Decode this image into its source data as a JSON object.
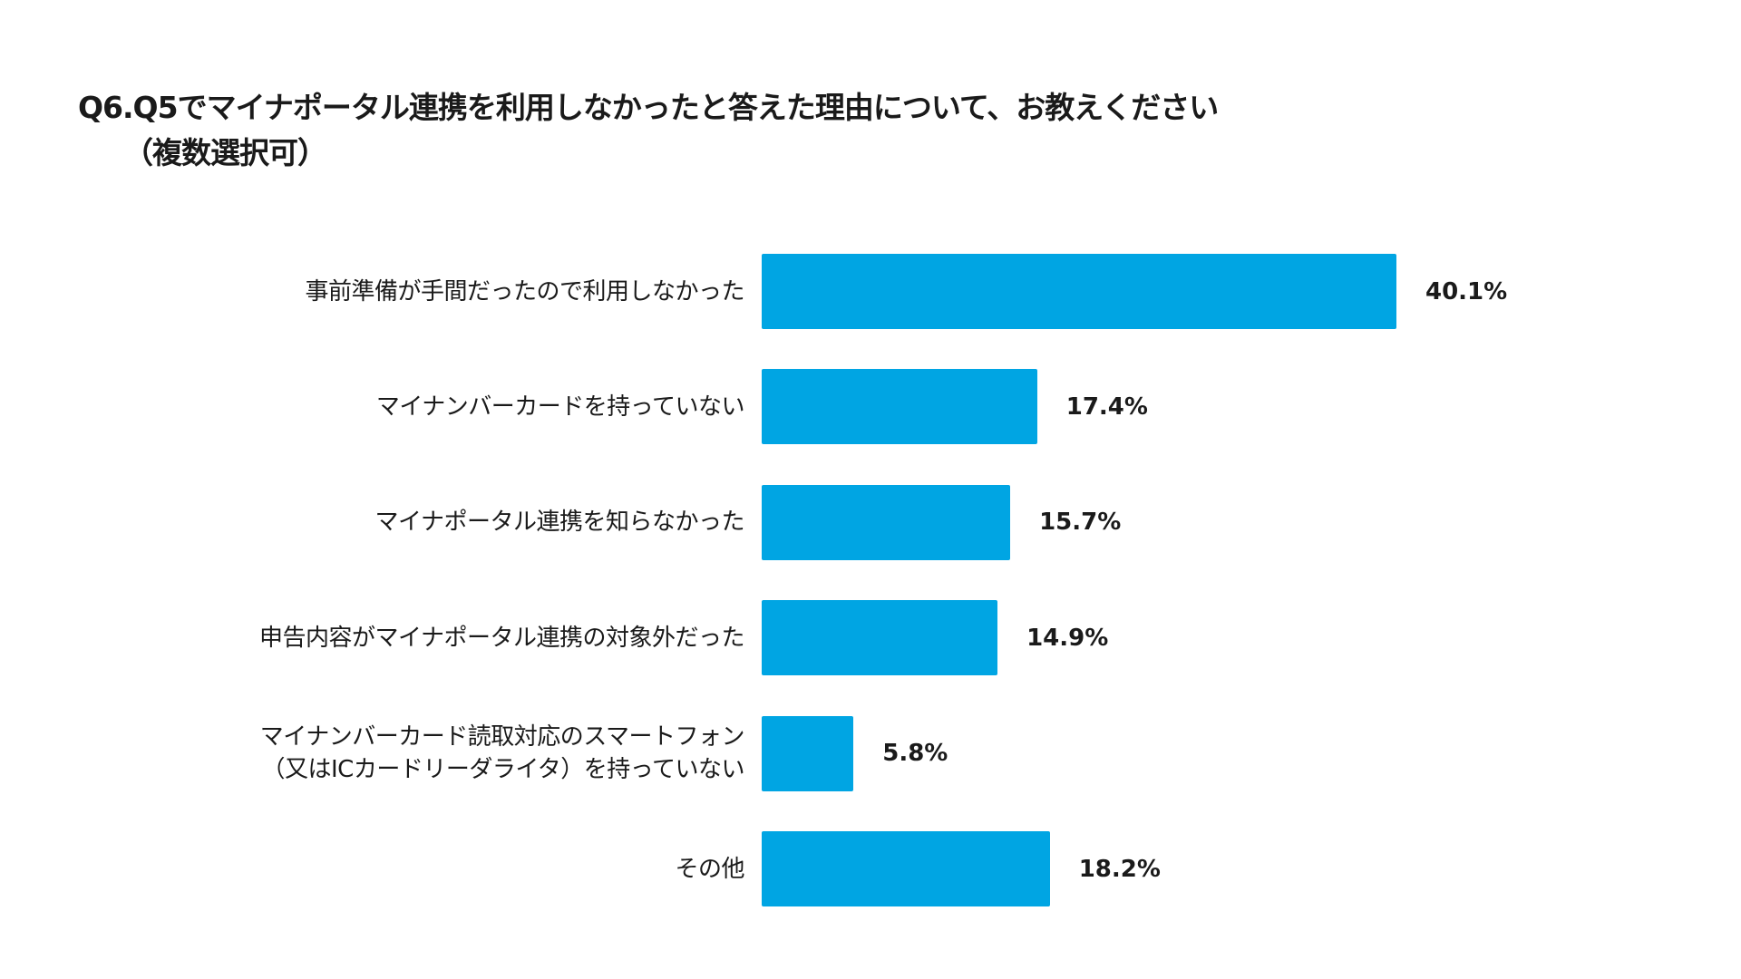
{
  "chart_data": {
    "type": "bar",
    "orientation": "horizontal",
    "title": "Q6.Q5でマイナポータル連携を利用しなかったと答えた理由について、お教えください",
    "subtitle": "（複数選択可）",
    "categories": [
      [
        "事前準備が手間だったので利用しなかった"
      ],
      [
        "マイナンバーカードを持っていない"
      ],
      [
        "マイナポータル連携を知らなかった"
      ],
      [
        "申告内容がマイナポータル連携の対象外だった"
      ],
      [
        "マイナンバーカード読取対応のスマートフォン",
        "（又はICカードリーダライタ）を持っていない"
      ],
      [
        "その他"
      ]
    ],
    "values": [
      40.1,
      17.4,
      15.7,
      14.9,
      5.8,
      18.2
    ],
    "labels": [
      "40.1%",
      "17.4%",
      "15.7%",
      "14.9%",
      "5.8%",
      "18.2%"
    ],
    "unit": "%",
    "color": "#00a5e3",
    "xlim": [
      0,
      40.1
    ],
    "grid": false
  }
}
